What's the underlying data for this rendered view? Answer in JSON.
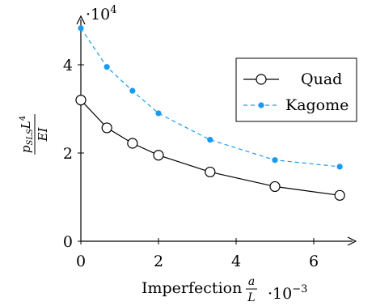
{
  "chart_data": {
    "type": "line",
    "title": "",
    "xlabel": "Imperfection",
    "xlabel_fraction_num": "a",
    "xlabel_fraction_den": "L",
    "xlabel_scale_base": "·10",
    "xlabel_scale_exp": "−3",
    "ylabel_num": "p",
    "ylabel_num_sub": "SLS",
    "ylabel_num_tail": "L",
    "ylabel_num_exp": "4",
    "ylabel_den": "EI",
    "ylabel_scale_base": "·10",
    "ylabel_scale_exp": "4",
    "xlim": [
      0,
      6.67
    ],
    "ylim": [
      0,
      4.8
    ],
    "x_ticks": [
      "0",
      "2",
      "4",
      "6"
    ],
    "y_ticks": [
      "0",
      "2",
      "4"
    ],
    "legend_position": "right",
    "series": [
      {
        "name": "Quad",
        "color": "#000000",
        "line_style": "solid",
        "marker": "open-circle",
        "x": [
          0,
          0.67,
          1.33,
          2.0,
          3.33,
          5.0,
          6.67
        ],
        "y": [
          3.2,
          2.57,
          2.22,
          1.95,
          1.57,
          1.24,
          1.04
        ]
      },
      {
        "name": "Kagome",
        "color": "#1a9bf0",
        "line_style": "dashed",
        "marker": "filled-circle",
        "x": [
          0,
          0.67,
          1.33,
          2.0,
          3.33,
          5.0,
          6.67
        ],
        "y": [
          4.83,
          3.95,
          3.41,
          2.9,
          2.3,
          1.84,
          1.69
        ]
      }
    ]
  }
}
